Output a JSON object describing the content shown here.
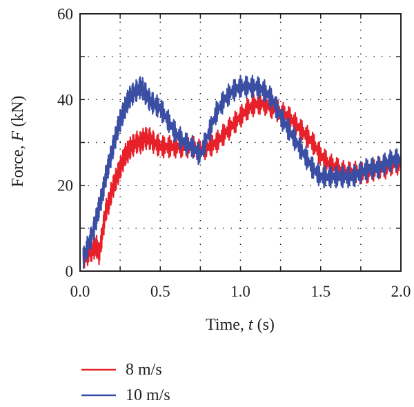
{
  "chart_data": {
    "type": "line",
    "xlabel": {
      "prefix": "Time, ",
      "var": "t",
      "suffix": " (s)"
    },
    "ylabel": {
      "prefix": "Force, ",
      "var": "F",
      "suffix": " (kN)"
    },
    "xlim": [
      0.0,
      2.0
    ],
    "ylim": [
      0,
      60
    ],
    "xticks": [
      "0.0",
      "0.5",
      "1.0",
      "1.5",
      "2.0"
    ],
    "yticks": [
      "0",
      "20",
      "40",
      "60"
    ],
    "grid": "dotted",
    "legend_position": "bottom-left, below plot",
    "series": [
      {
        "name": "8 m/s",
        "color": "#e8202a",
        "x": [
          0.02,
          0.05,
          0.08,
          0.1,
          0.12,
          0.14,
          0.16,
          0.18,
          0.2,
          0.22,
          0.24,
          0.26,
          0.28,
          0.3,
          0.32,
          0.35,
          0.38,
          0.4,
          0.43,
          0.46,
          0.5,
          0.55,
          0.6,
          0.65,
          0.7,
          0.75,
          0.8,
          0.85,
          0.9,
          0.95,
          1.0,
          1.05,
          1.1,
          1.15,
          1.2,
          1.25,
          1.3,
          1.35,
          1.4,
          1.45,
          1.5,
          1.55,
          1.6,
          1.65,
          1.7,
          1.75,
          1.8,
          1.85,
          1.9,
          1.95,
          2.0
        ],
        "y": [
          3,
          4,
          5,
          6,
          4,
          9,
          14,
          16,
          19,
          21,
          23,
          25,
          27,
          28,
          29,
          30,
          30,
          31,
          31,
          30,
          29,
          29,
          29,
          29,
          29,
          28,
          29,
          30,
          32,
          34,
          36,
          38,
          39,
          39,
          38,
          37,
          36,
          34,
          32,
          30,
          27,
          25,
          24,
          23,
          23,
          23,
          23,
          24,
          24,
          25,
          25
        ]
      },
      {
        "name": "10 m/s",
        "color": "#3a4ea3",
        "x": [
          0.02,
          0.05,
          0.08,
          0.1,
          0.12,
          0.14,
          0.16,
          0.18,
          0.2,
          0.22,
          0.24,
          0.26,
          0.28,
          0.3,
          0.32,
          0.35,
          0.38,
          0.4,
          0.43,
          0.46,
          0.5,
          0.55,
          0.6,
          0.65,
          0.7,
          0.75,
          0.8,
          0.85,
          0.9,
          0.95,
          1.0,
          1.05,
          1.1,
          1.15,
          1.2,
          1.25,
          1.3,
          1.35,
          1.4,
          1.45,
          1.5,
          1.55,
          1.6,
          1.65,
          1.7,
          1.75,
          1.8,
          1.85,
          1.9,
          1.95,
          2.0
        ],
        "y": [
          3,
          6,
          9,
          12,
          15,
          18,
          22,
          25,
          28,
          31,
          34,
          36,
          38,
          40,
          41,
          42,
          43,
          42,
          40,
          39,
          38,
          35,
          32,
          30,
          29,
          27,
          32,
          37,
          40,
          42,
          43,
          43,
          43,
          42,
          40,
          36,
          33,
          30,
          27,
          24,
          22,
          22,
          22,
          22,
          22,
          23,
          24,
          24,
          25,
          26,
          26
        ]
      }
    ]
  }
}
